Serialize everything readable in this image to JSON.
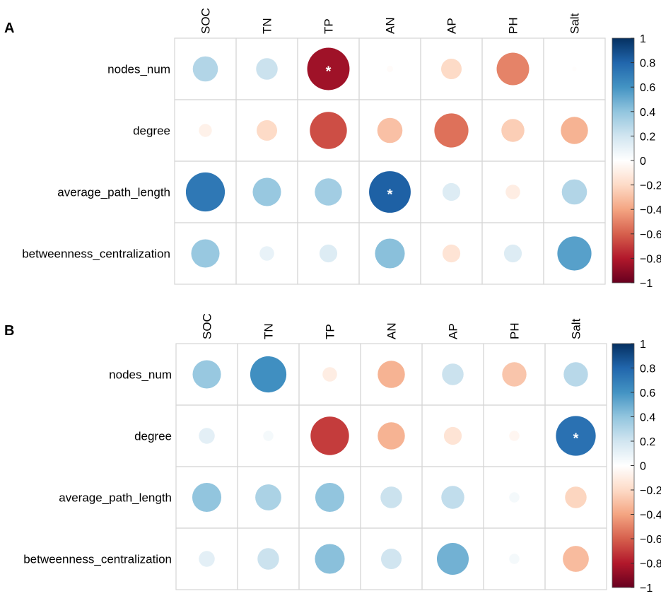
{
  "figure": {
    "panels": [
      "A",
      "B"
    ]
  },
  "chart_data": [
    {
      "panel": "A",
      "type": "heatmap",
      "subtype": "correlation-circles",
      "columns": [
        "SOC",
        "TN",
        "TP",
        "AN",
        "AP",
        "PH",
        "Salt"
      ],
      "rows": [
        "nodes_num",
        "degree",
        "average_path_length",
        "betweenness_centralization"
      ],
      "values": [
        [
          0.3,
          0.22,
          -0.85,
          -0.02,
          -0.2,
          -0.5,
          -0.01
        ],
        [
          -0.08,
          -0.2,
          -0.65,
          -0.3,
          -0.55,
          -0.25,
          -0.35
        ],
        [
          0.72,
          0.38,
          0.35,
          0.82,
          0.15,
          -0.1,
          0.3
        ],
        [
          0.38,
          0.1,
          0.15,
          0.42,
          -0.15,
          0.15,
          0.55
        ]
      ],
      "significant": [
        [
          false,
          false,
          true,
          false,
          false,
          false,
          false
        ],
        [
          false,
          false,
          false,
          false,
          false,
          false,
          false
        ],
        [
          false,
          false,
          false,
          true,
          false,
          false,
          false
        ],
        [
          false,
          false,
          false,
          false,
          false,
          false,
          false
        ]
      ],
      "significance_marker": "*",
      "colorbar": {
        "range": [
          -1,
          1
        ],
        "ticks": [
          "1",
          "0.8",
          "0.6",
          "0.4",
          "0.2",
          "0",
          "−0.2",
          "−0.4",
          "−0.6",
          "−0.8",
          "−1"
        ]
      }
    },
    {
      "panel": "B",
      "type": "heatmap",
      "subtype": "correlation-circles",
      "columns": [
        "SOC",
        "TN",
        "TP",
        "AN",
        "AP",
        "PH",
        "Salt"
      ],
      "rows": [
        "nodes_num",
        "degree",
        "average_path_length",
        "betweenness_centralization"
      ],
      "values": [
        [
          0.38,
          0.62,
          -0.1,
          -0.35,
          0.22,
          -0.28,
          0.28
        ],
        [
          0.12,
          0.05,
          -0.7,
          -0.35,
          -0.15,
          -0.05,
          0.75
        ],
        [
          0.4,
          0.32,
          0.4,
          0.22,
          0.25,
          0.05,
          -0.22
        ],
        [
          0.12,
          0.22,
          0.42,
          0.2,
          0.48,
          0.05,
          -0.32
        ]
      ],
      "significant": [
        [
          false,
          false,
          false,
          false,
          false,
          false,
          false
        ],
        [
          false,
          false,
          false,
          false,
          false,
          false,
          true
        ],
        [
          false,
          false,
          false,
          false,
          false,
          false,
          false
        ],
        [
          false,
          false,
          false,
          false,
          false,
          false,
          false
        ]
      ],
      "significance_marker": "*",
      "colorbar": {
        "range": [
          -1,
          1
        ],
        "ticks": [
          "1",
          "0.8",
          "0.6",
          "0.4",
          "0.2",
          "0",
          "−0.2",
          "−0.4",
          "−0.6",
          "−0.8",
          "−1"
        ]
      }
    }
  ]
}
